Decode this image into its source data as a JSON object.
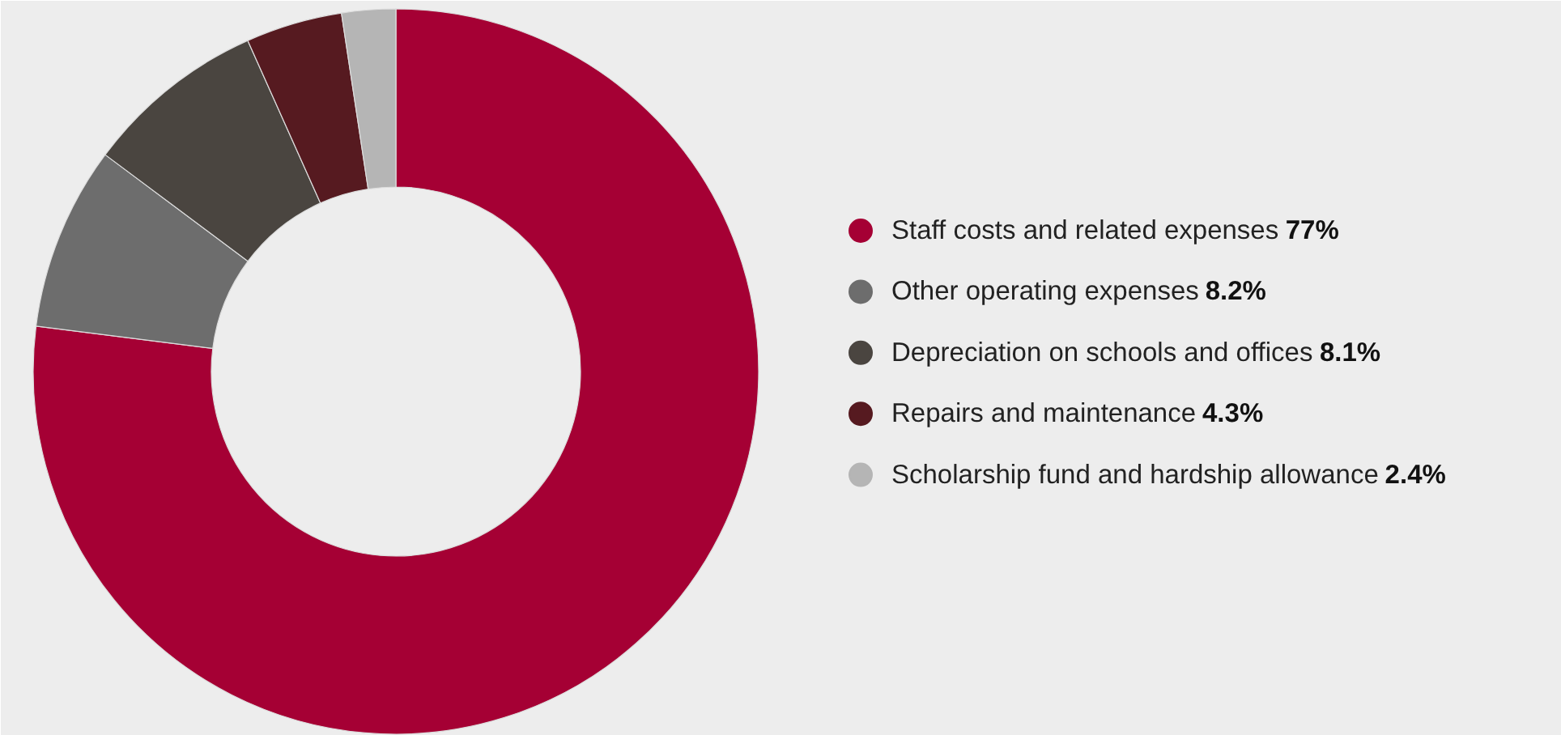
{
  "chart_data": {
    "type": "donut",
    "categories": [
      "Staff costs and related expenses",
      "Other operating expenses",
      "Depreciation on schools and offices",
      "Repairs and maintenance",
      "Scholarship fund and hardship allowance"
    ],
    "values": [
      77,
      8.2,
      8.1,
      4.3,
      2.4
    ],
    "value_labels": [
      "77%",
      "8.2%",
      "8.1%",
      "4.3%",
      "2.4%"
    ],
    "colors": [
      "#a50034",
      "#6d6d6d",
      "#4a4540",
      "#561a20",
      "#b5b5b5"
    ],
    "legend": "right"
  }
}
